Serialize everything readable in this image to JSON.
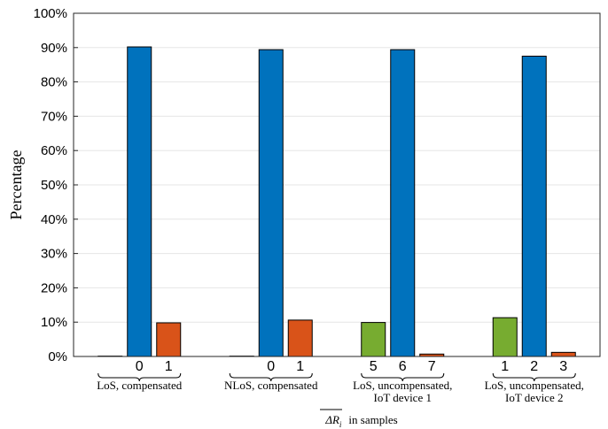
{
  "chart_data": {
    "type": "bar",
    "ylabel": "Percentage",
    "xlabel": {
      "symbol": "ΔR",
      "subscript": "i",
      "suffix": "in samples"
    },
    "ylim": [
      0,
      100
    ],
    "ytick_labels": [
      "0%",
      "10%",
      "20%",
      "30%",
      "40%",
      "50%",
      "60%",
      "70%",
      "80%",
      "90%",
      "100%"
    ],
    "grid": true,
    "colors": {
      "green": "#77AC30",
      "blue": "#0072BD",
      "orange": "#D95319"
    },
    "groups": [
      {
        "label": [
          "LoS, compensated"
        ],
        "bars": [
          {
            "tick": "",
            "value": 0.1,
            "color": "green"
          },
          {
            "tick": "0",
            "value": 90.2,
            "color": "blue"
          },
          {
            "tick": "1",
            "value": 9.8,
            "color": "orange"
          }
        ]
      },
      {
        "label": [
          "NLoS, compensated"
        ],
        "bars": [
          {
            "tick": "",
            "value": 0.1,
            "color": "green"
          },
          {
            "tick": "0",
            "value": 89.4,
            "color": "blue"
          },
          {
            "tick": "1",
            "value": 10.6,
            "color": "orange"
          }
        ]
      },
      {
        "label": [
          "LoS, uncompensated,",
          "IoT device 1"
        ],
        "bars": [
          {
            "tick": "5",
            "value": 9.9,
            "color": "green"
          },
          {
            "tick": "6",
            "value": 89.4,
            "color": "blue"
          },
          {
            "tick": "7",
            "value": 0.7,
            "color": "orange"
          }
        ]
      },
      {
        "label": [
          "LoS, uncompensated,",
          "IoT device 2"
        ],
        "bars": [
          {
            "tick": "1",
            "value": 11.3,
            "color": "green"
          },
          {
            "tick": "2",
            "value": 87.5,
            "color": "blue"
          },
          {
            "tick": "3",
            "value": 1.2,
            "color": "orange"
          }
        ]
      }
    ]
  }
}
